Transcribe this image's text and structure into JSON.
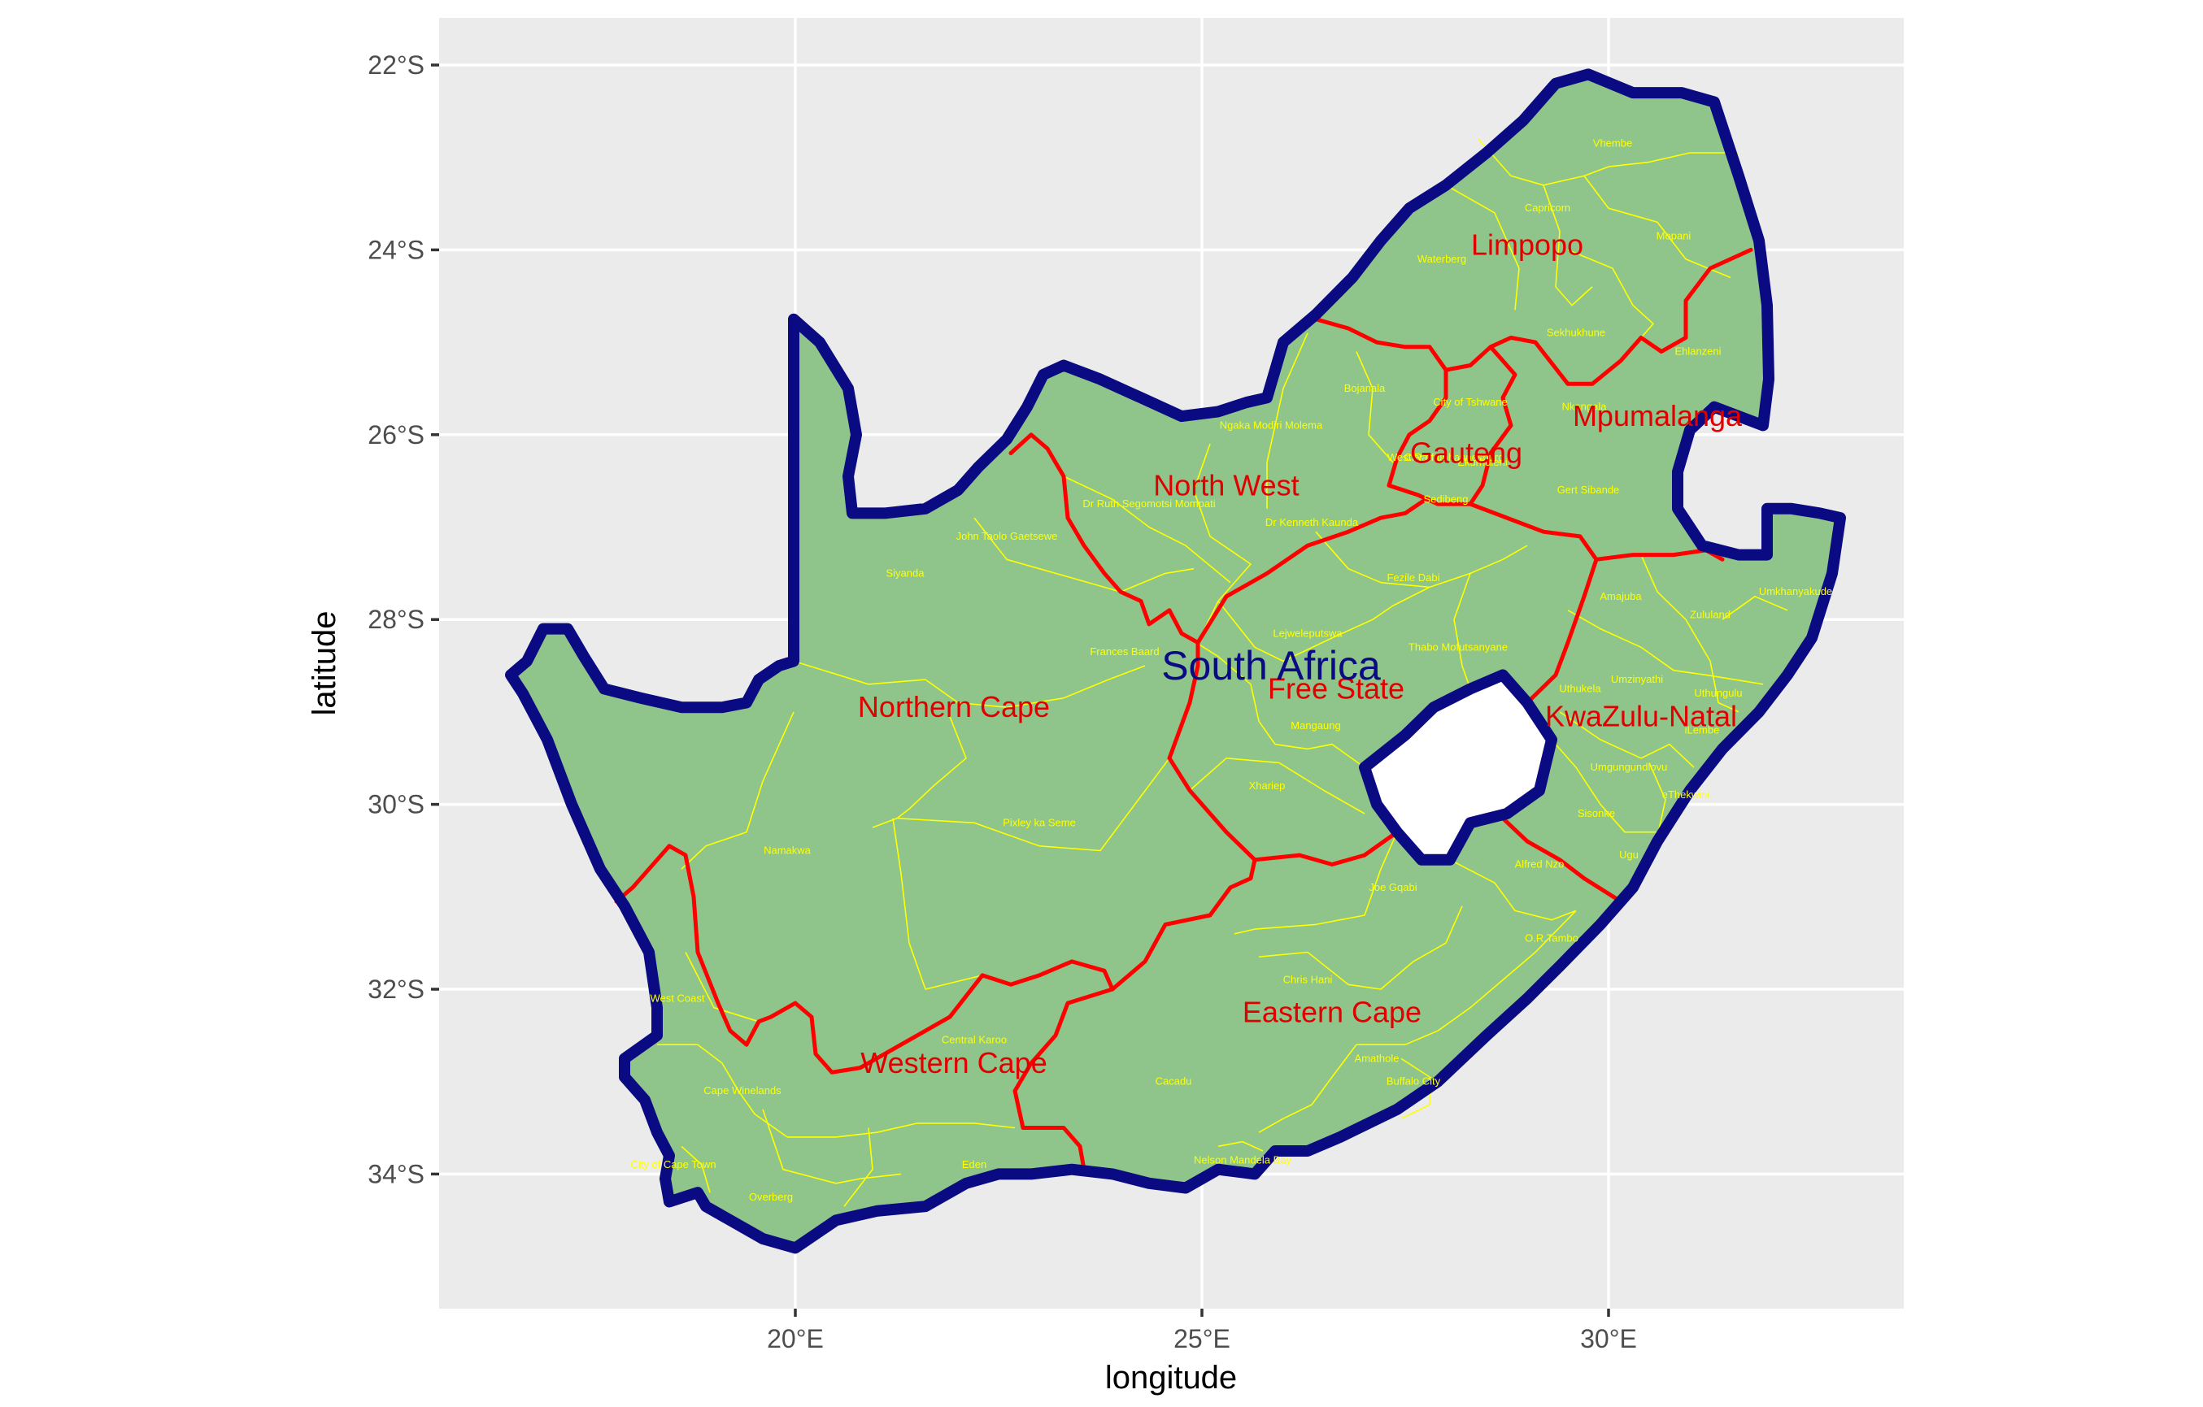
{
  "map": {
    "x_axis_title": "longitude",
    "y_axis_title": "latitude",
    "x_ticks": [
      {
        "value": 20,
        "label": "20°E"
      },
      {
        "value": 25,
        "label": "25°E"
      },
      {
        "value": 30,
        "label": "30°E"
      }
    ],
    "y_ticks": [
      {
        "value": -22,
        "label": "22°S"
      },
      {
        "value": -24,
        "label": "24°S"
      },
      {
        "value": -26,
        "label": "26°S"
      },
      {
        "value": -28,
        "label": "28°S"
      },
      {
        "value": -30,
        "label": "30°S"
      },
      {
        "value": -32,
        "label": "32°S"
      },
      {
        "value": -34,
        "label": "34°S"
      }
    ],
    "xlim": [
      15.6,
      33.6
    ],
    "ylim": [
      -35.4,
      -21.5
    ],
    "country": {
      "name": "South Africa",
      "lon": 25.85,
      "lat": -28.5
    },
    "provinces": [
      {
        "name": "Limpopo",
        "lon": 29.0,
        "lat": -23.95
      },
      {
        "name": "Mpumalanga",
        "lon": 30.6,
        "lat": -25.8
      },
      {
        "name": "Gauteng",
        "lon": 28.25,
        "lat": -26.2
      },
      {
        "name": "North West",
        "lon": 25.3,
        "lat": -26.55
      },
      {
        "name": "Northern Cape",
        "lon": 21.95,
        "lat": -28.95
      },
      {
        "name": "Free State",
        "lon": 26.65,
        "lat": -28.75
      },
      {
        "name": "KwaZulu-Natal",
        "lon": 30.4,
        "lat": -29.05
      },
      {
        "name": "Eastern Cape",
        "lon": 26.6,
        "lat": -32.25
      },
      {
        "name": "Western Cape",
        "lon": 21.95,
        "lat": -32.8
      }
    ],
    "districts": [
      {
        "name": "Vhembe",
        "lon": 30.05,
        "lat": -22.85
      },
      {
        "name": "Capricorn",
        "lon": 29.25,
        "lat": -23.55
      },
      {
        "name": "Mopani",
        "lon": 30.8,
        "lat": -23.85
      },
      {
        "name": "Waterberg",
        "lon": 27.95,
        "lat": -24.1
      },
      {
        "name": "Sekhukhune",
        "lon": 29.6,
        "lat": -24.9
      },
      {
        "name": "Ehlanzeni",
        "lon": 31.1,
        "lat": -25.1
      },
      {
        "name": "Bojanala",
        "lon": 27.0,
        "lat": -25.5
      },
      {
        "name": "City of Tshwane",
        "lon": 28.3,
        "lat": -25.65
      },
      {
        "name": "Nkangala",
        "lon": 29.7,
        "lat": -25.7
      },
      {
        "name": "Ngaka Modiri Molema",
        "lon": 25.85,
        "lat": -25.9
      },
      {
        "name": "West Rand",
        "lon": 27.6,
        "lat": -26.25
      },
      {
        "name": "City of Johannesburg",
        "lon": 28.1,
        "lat": -26.25
      },
      {
        "name": "Ekurhuleni",
        "lon": 28.45,
        "lat": -26.3
      },
      {
        "name": "Sedibeng",
        "lon": 28.0,
        "lat": -26.7
      },
      {
        "name": "Gert Sibande",
        "lon": 29.75,
        "lat": -26.6
      },
      {
        "name": "Dr Ruth Segomotsi Mompati",
        "lon": 24.35,
        "lat": -26.75
      },
      {
        "name": "Dr Kenneth Kaunda",
        "lon": 26.35,
        "lat": -26.95
      },
      {
        "name": "John Taolo Gaetsewe",
        "lon": 22.6,
        "lat": -27.1
      },
      {
        "name": "Siyanda",
        "lon": 21.35,
        "lat": -27.5
      },
      {
        "name": "Fezile Dabi",
        "lon": 27.6,
        "lat": -27.55
      },
      {
        "name": "Amajuba",
        "lon": 30.15,
        "lat": -27.75
      },
      {
        "name": "Umkhanyakude",
        "lon": 32.3,
        "lat": -27.7
      },
      {
        "name": "Zululand",
        "lon": 31.25,
        "lat": -27.95
      },
      {
        "name": "Lejweleputswa",
        "lon": 26.3,
        "lat": -28.15
      },
      {
        "name": "Thabo Mofutsanyane",
        "lon": 28.15,
        "lat": -28.3
      },
      {
        "name": "Frances Baard",
        "lon": 24.05,
        "lat": -28.35
      },
      {
        "name": "Uthukela",
        "lon": 29.65,
        "lat": -28.75
      },
      {
        "name": "Umzinyathi",
        "lon": 30.35,
        "lat": -28.65
      },
      {
        "name": "Uthungulu",
        "lon": 31.35,
        "lat": -28.8
      },
      {
        "name": "Mangaung",
        "lon": 26.4,
        "lat": -29.15
      },
      {
        "name": "iLembe",
        "lon": 31.15,
        "lat": -29.2
      },
      {
        "name": "Umgungundlovu",
        "lon": 30.25,
        "lat": -29.6
      },
      {
        "name": "eThekwini",
        "lon": 30.95,
        "lat": -29.9
      },
      {
        "name": "Xhariep",
        "lon": 25.8,
        "lat": -29.8
      },
      {
        "name": "Sisonke",
        "lon": 29.85,
        "lat": -30.1
      },
      {
        "name": "Pixley ka Seme",
        "lon": 23.0,
        "lat": -30.2
      },
      {
        "name": "Namakwa",
        "lon": 19.9,
        "lat": -30.5
      },
      {
        "name": "Alfred Nzo",
        "lon": 29.15,
        "lat": -30.65
      },
      {
        "name": "Ugu",
        "lon": 30.25,
        "lat": -30.55
      },
      {
        "name": "Joe Gqabi",
        "lon": 27.35,
        "lat": -30.9
      },
      {
        "name": "O.R.Tambo",
        "lon": 29.3,
        "lat": -31.45
      },
      {
        "name": "Chris Hani",
        "lon": 26.3,
        "lat": -31.9
      },
      {
        "name": "West Coast",
        "lon": 18.55,
        "lat": -32.1
      },
      {
        "name": "Central Karoo",
        "lon": 22.2,
        "lat": -32.55
      },
      {
        "name": "Amathole",
        "lon": 27.15,
        "lat": -32.75
      },
      {
        "name": "Cacadu",
        "lon": 24.65,
        "lat": -33.0
      },
      {
        "name": "Buffalo City",
        "lon": 27.6,
        "lat": -33.0
      },
      {
        "name": "Cape Winelands",
        "lon": 19.35,
        "lat": -33.1
      },
      {
        "name": "Nelson Mandela Bay",
        "lon": 25.5,
        "lat": -33.85
      },
      {
        "name": "City of Cape Town",
        "lon": 18.5,
        "lat": -33.9
      },
      {
        "name": "Eden",
        "lon": 22.2,
        "lat": -33.9
      },
      {
        "name": "Overberg",
        "lon": 19.7,
        "lat": -34.25
      }
    ]
  }
}
